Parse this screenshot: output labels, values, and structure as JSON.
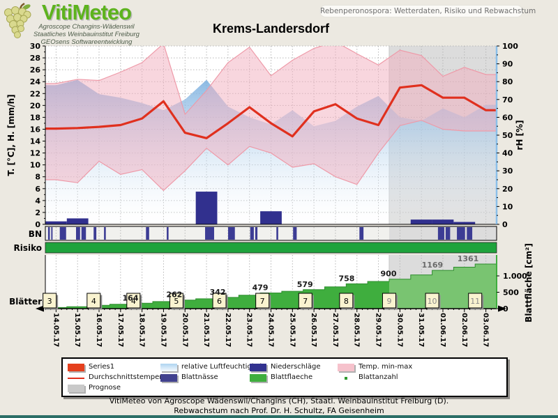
{
  "header": {
    "logo_title": "VitiMeteo",
    "logo_sub1": "Agroscope Changins-Wädenswil",
    "logo_sub2": "Staatliches Weinbauinstitut Freiburg",
    "logo_sub3": "GEOsens Softwareentwicklung",
    "topic_pill": "Rebenperonospora: Wetterdaten, Risiko und Rebwachstum",
    "title": "Krems-Landersdorf"
  },
  "rows": {
    "bn_label": "BN",
    "risiko_label": "Risiko",
    "blaetter_label": "Blätter"
  },
  "colors": {
    "page_bg": "#ece9e1",
    "plot_bg": "#ffffff",
    "prognose_gray": "#dcdcdc",
    "avg_temp_red": "#e0301e",
    "minmax_pink_fill": "#f1aebe",
    "minmax_pink_edge": "#ee9aa8",
    "humidity_blue": "#7fb2e0",
    "precip_navy": "#31308e",
    "wetness_navy": "#3c3c94",
    "risiko_green": "#1ea33c",
    "leafarea_green": "#3fae3e",
    "leafarea_forecast_green": "#79c471",
    "right_axis_blue": "#8cc0ea",
    "bottom_bar_teal": "#2b6e66",
    "leafbox_cream": "#f9f3d0"
  },
  "chart_data": {
    "type": "line",
    "title": "Krems-Landersdorf",
    "x_dates": [
      "14.05.17",
      "15.05.17",
      "16.05.17",
      "17.05.17",
      "18.05.17",
      "19.05.17",
      "20.05.17",
      "21.05.17",
      "22.05.17",
      "23.05.17",
      "24.05.17",
      "25.05.17",
      "26.05.17",
      "27.05.17",
      "28.05.17",
      "29.05.17",
      "30.05.17",
      "31.05.17",
      "01.06.17",
      "02.06.17",
      "03.06.17"
    ],
    "prognose_start_day": 15.5,
    "axis_left": {
      "label": "T. [°C], H. [mm/h]",
      "min": 0,
      "max": 30,
      "step": 2
    },
    "axis_right": {
      "label": "rH [%]",
      "min": 0,
      "max": 100,
      "step": 10
    },
    "axis_leaf": {
      "label": "Blattfläche [cm²]",
      "ticks": [
        {
          "value": 0,
          "text": "0"
        },
        {
          "value": 500,
          "text": "500"
        },
        {
          "value": 1000,
          "text": "1.000"
        }
      ]
    },
    "series": {
      "durchschnittstemperatur": [
        16.1,
        16.2,
        16.4,
        16.7,
        17.8,
        20.7,
        15.4,
        14.5,
        17.0,
        19.7,
        17.0,
        14.8,
        19.0,
        20.2,
        17.8,
        16.7,
        23.0,
        23.4,
        21.3,
        21.3,
        19.2
      ],
      "temp_max": [
        23.7,
        24.4,
        24.2,
        25.6,
        27.2,
        30.4,
        18.5,
        22.5,
        27.2,
        29.8,
        25.0,
        27.6,
        29.6,
        30.7,
        28.7,
        26.8,
        29.3,
        28.4,
        24.9,
        26.4,
        25.2
      ],
      "temp_min": [
        7.5,
        7.0,
        10.6,
        8.4,
        9.2,
        5.7,
        9.0,
        12.8,
        10.0,
        13.1,
        12.0,
        9.6,
        10.2,
        8.0,
        6.7,
        12.0,
        16.6,
        17.5,
        16.0,
        15.7,
        15.7
      ],
      "relative_luftfeuchtigkeit": [
        78,
        81,
        73,
        71,
        68,
        64,
        70,
        81,
        66,
        60,
        56,
        64,
        55,
        58,
        66,
        72,
        60,
        58,
        65,
        60,
        67
      ],
      "niederschlaege": [
        0.5,
        1.0,
        0,
        0,
        0,
        0,
        0,
        5.5,
        0,
        0,
        2.2,
        0,
        0,
        0,
        0,
        0,
        0,
        0.8,
        0.8,
        0.4,
        0
      ],
      "blattnaesse_segments": [
        [
          0.006,
          0.01
        ],
        [
          0.013,
          0.016
        ],
        [
          0.032,
          0.046
        ],
        [
          0.068,
          0.077
        ],
        [
          0.08,
          0.09
        ],
        [
          0.107,
          0.113
        ],
        [
          0.13,
          0.134
        ],
        [
          0.223,
          0.23
        ],
        [
          0.269,
          0.273
        ],
        [
          0.354,
          0.374
        ],
        [
          0.405,
          0.42
        ],
        [
          0.454,
          0.462
        ],
        [
          0.465,
          0.47
        ],
        [
          0.512,
          0.516
        ],
        [
          0.549,
          0.557
        ],
        [
          0.696,
          0.705
        ],
        [
          0.87,
          0.884
        ],
        [
          0.887,
          0.897
        ],
        [
          0.912,
          0.93
        ],
        [
          0.934,
          0.946
        ]
      ],
      "risiko_full_width": true,
      "blattflaeche": [
        35,
        60,
        100,
        132,
        164,
        215,
        262,
        300,
        342,
        410,
        479,
        530,
        579,
        665,
        758,
        830,
        900,
        1030,
        1169,
        1265,
        1361
      ],
      "blattanzahl": [
        {
          "pos": -0.3,
          "label": "3"
        },
        {
          "pos": 1.75,
          "label": "4"
        },
        {
          "pos": 3.6,
          "label": "4"
        },
        {
          "pos": 5.6,
          "label": "5"
        },
        {
          "pos": 7.6,
          "label": "6"
        },
        {
          "pos": 9.6,
          "label": "7"
        },
        {
          "pos": 11.6,
          "label": "7"
        },
        {
          "pos": 13.5,
          "label": "8"
        },
        {
          "pos": 15.5,
          "label": "9"
        },
        {
          "pos": 17.5,
          "label": "10"
        },
        {
          "pos": 19.5,
          "label": "11"
        }
      ]
    },
    "value_labels": [
      {
        "pos": 3.46,
        "value": 164,
        "text": "164"
      },
      {
        "pos": 5.5,
        "value": 262,
        "text": "262"
      },
      {
        "pos": 7.52,
        "value": 342,
        "text": "342"
      },
      {
        "pos": 9.5,
        "value": 479,
        "text": "479"
      },
      {
        "pos": 11.58,
        "value": 579,
        "text": "579"
      },
      {
        "pos": 13.52,
        "value": 758,
        "text": "758"
      },
      {
        "pos": 15.47,
        "value": 900,
        "text": "900"
      },
      {
        "pos": 17.51,
        "value": 1169,
        "text": "1169"
      },
      {
        "pos": 19.17,
        "value": 1361,
        "text": "1361"
      }
    ]
  },
  "legend": {
    "items": [
      {
        "label": "Series1",
        "swatch": "series1",
        "col": 0,
        "row": 0
      },
      {
        "label": "relative Luftfeuchtigkeit",
        "swatch": "rh",
        "col": 1,
        "row": 0
      },
      {
        "label": "Niederschläge",
        "swatch": "precip",
        "col": 2,
        "row": 0
      },
      {
        "label": "Temp. min-max",
        "swatch": "minmax",
        "col": 3,
        "row": 0
      },
      {
        "label": "Durchschnittstemperatur",
        "swatch": "avgline",
        "col": 0,
        "row": 1
      },
      {
        "label": "Blattnässe",
        "swatch": "wetness",
        "col": 1,
        "row": 1
      },
      {
        "label": "Blattflaeche",
        "swatch": "leafarea",
        "col": 2,
        "row": 1
      },
      {
        "label": "Blattanzahl",
        "swatch": "leafcount",
        "col": 3,
        "row": 1
      },
      {
        "label": "Prognose",
        "swatch": "forecast",
        "col": 0,
        "row": 2
      }
    ]
  },
  "footer": {
    "line1": "VitiMeteo von Agroscope Wädenswil/Changins (CH), Staatl. Weinbauinstitut Freiburg (D).",
    "line2": "Rebwachstum nach Prof. Dr. H. Schultz, FA Geisenheim"
  }
}
